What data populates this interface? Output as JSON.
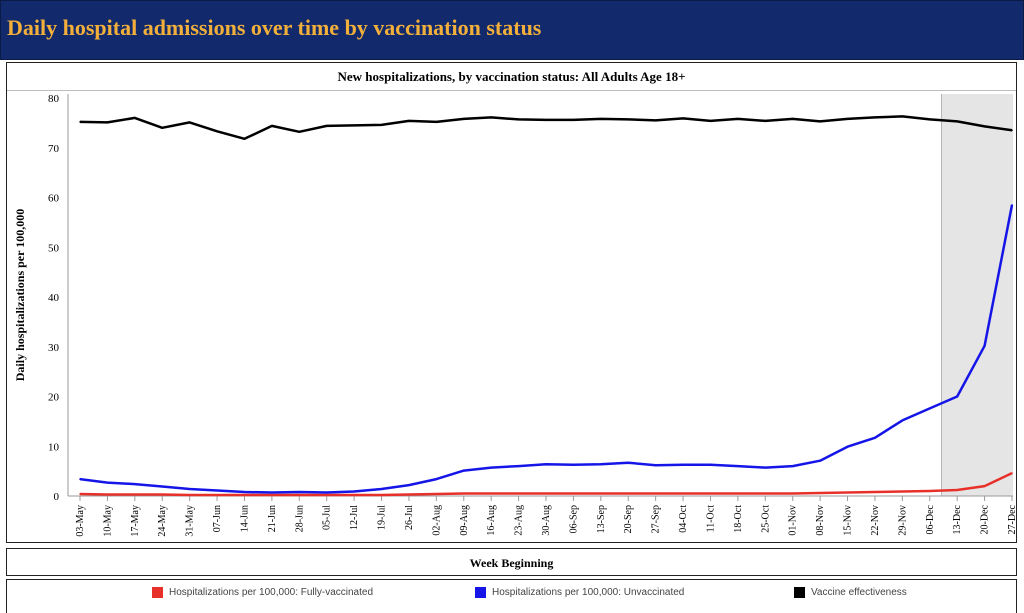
{
  "header": {
    "title": "Daily hospital admissions over time by vaccination status"
  },
  "chart_data": {
    "type": "line",
    "title": "New hospitalizations, by vaccination status: All Adults Age 18+",
    "xlabel": "Week Beginning",
    "ylabel": "Daily hospitalizations per 100,000",
    "ylim": [
      0,
      80
    ],
    "yticks": [
      0,
      10,
      20,
      30,
      40,
      50,
      60,
      70,
      80
    ],
    "grid": false,
    "legend_position": "bottom",
    "shaded_region": {
      "from": "13-Dec",
      "to": "27-Dec"
    },
    "categories": [
      "03-May",
      "10-May",
      "17-May",
      "24-May",
      "31-May",
      "07-Jun",
      "14-Jun",
      "21-Jun",
      "28-Jun",
      "05-Jul",
      "12-Jul",
      "19-Jul",
      "26-Jul",
      "02-Aug",
      "09-Aug",
      "16-Aug",
      "23-Aug",
      "30-Aug",
      "06-Sep",
      "13-Sep",
      "20-Sep",
      "27-Sep",
      "04-Oct",
      "11-Oct",
      "18-Oct",
      "25-Oct",
      "01-Nov",
      "08-Nov",
      "15-Nov",
      "22-Nov",
      "29-Nov",
      "06-Dec",
      "13-Dec",
      "20-Dec",
      "27-Dec"
    ],
    "series": [
      {
        "name": "Hospitalizations per 100,000: Fully-vaccinated",
        "color": "#e8302a",
        "values": [
          0.4,
          0.3,
          0.3,
          0.3,
          0.2,
          0.2,
          0.2,
          0.2,
          0.2,
          0.2,
          0.2,
          0.2,
          0.3,
          0.4,
          0.5,
          0.5,
          0.5,
          0.5,
          0.5,
          0.5,
          0.5,
          0.5,
          0.5,
          0.5,
          0.5,
          0.5,
          0.5,
          0.6,
          0.7,
          0.8,
          0.9,
          1.0,
          1.2,
          2.0,
          4.6
        ]
      },
      {
        "name": "Hospitalizations per 100,000: Unvaccinated",
        "color": "#1515e8",
        "values": [
          3.4,
          2.7,
          2.4,
          1.9,
          1.4,
          1.1,
          0.8,
          0.7,
          0.8,
          0.7,
          0.9,
          1.4,
          2.2,
          3.4,
          5.1,
          5.7,
          6.0,
          6.4,
          6.3,
          6.4,
          6.7,
          6.2,
          6.3,
          6.3,
          6.0,
          5.7,
          6.0,
          7.1,
          9.9,
          11.7,
          15.2,
          17.6,
          20.0,
          30.2,
          58.5
        ]
      },
      {
        "name": "Vaccine effectiveness",
        "color": "#000000",
        "values": [
          75.2,
          75.1,
          76.0,
          74.0,
          75.1,
          73.3,
          71.8,
          74.4,
          73.2,
          74.4,
          74.5,
          74.6,
          75.4,
          75.2,
          75.8,
          76.1,
          75.7,
          75.6,
          75.6,
          75.8,
          75.7,
          75.5,
          75.9,
          75.4,
          75.8,
          75.4,
          75.8,
          75.3,
          75.8,
          76.1,
          76.3,
          75.7,
          75.3,
          74.3,
          73.5
        ]
      }
    ]
  }
}
